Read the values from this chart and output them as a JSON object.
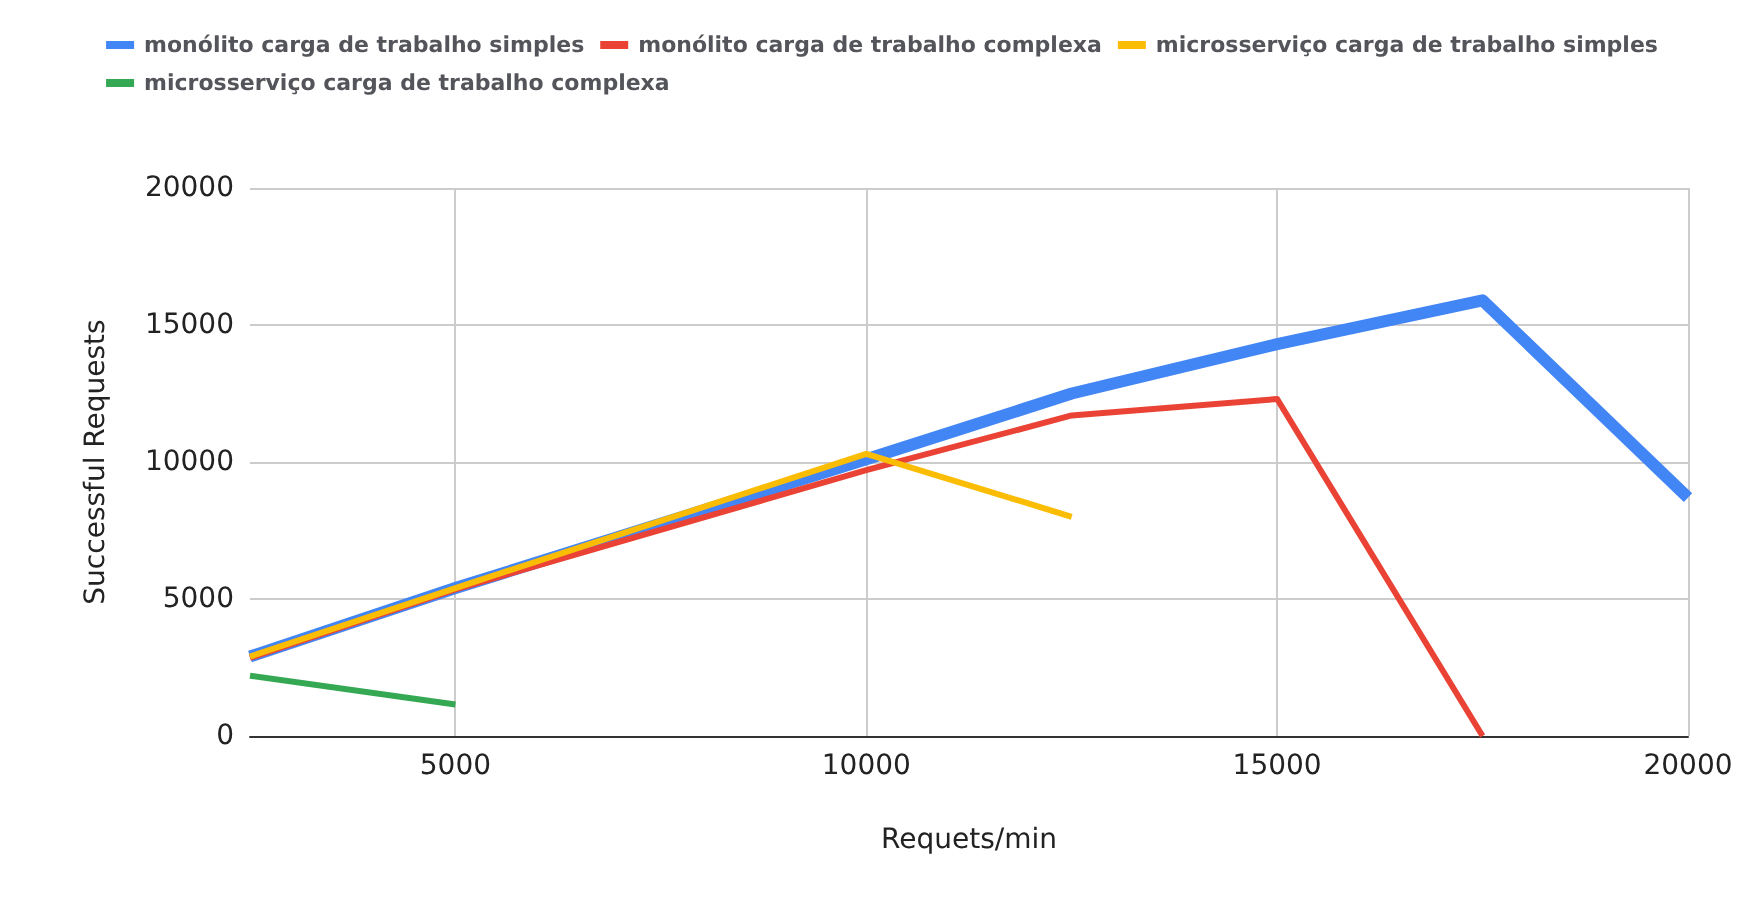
{
  "chart_data": {
    "type": "line",
    "xlabel": "Requets/min",
    "ylabel": "Successful Requests",
    "xlim": [
      2500,
      20000
    ],
    "xticks": [
      5000,
      10000,
      15000,
      20000
    ],
    "ylim": [
      0,
      20000
    ],
    "yticks": [
      0,
      5000,
      10000,
      15000,
      20000
    ],
    "grid": true,
    "legend": "top",
    "series": [
      {
        "name": "monólito carga de trabalho simples",
        "color": "#4285f4",
        "x": [
          2500,
          5000,
          10000,
          12500,
          15000,
          17500,
          20000
        ],
        "values": [
          2900,
          5400,
          10100,
          12500,
          14300,
          15900,
          8700
        ]
      },
      {
        "name": "monólito carga de trabalho complexa",
        "color": "#ea4335",
        "x": [
          2500,
          5000,
          10000,
          12500,
          15000,
          17500
        ],
        "values": [
          2850,
          5350,
          9700,
          11700,
          12300,
          0
        ]
      },
      {
        "name": "microsserviço carga de trabalho simples",
        "color": "#fbbc04",
        "x": [
          2500,
          5000,
          10000,
          12500
        ],
        "values": [
          2900,
          5400,
          10300,
          8000
        ]
      },
      {
        "name": "microsserviço carga de trabalho complexa",
        "color": "#34a853",
        "x": [
          2500,
          5000
        ],
        "values": [
          2200,
          1150
        ]
      }
    ]
  }
}
